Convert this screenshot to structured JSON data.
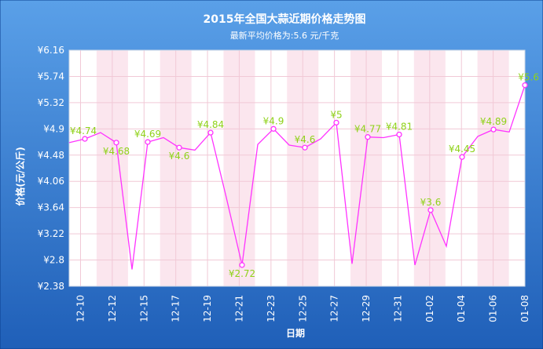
{
  "colors": {
    "background_top": "#5aa0e8",
    "background_bottom": "#1f5fb8",
    "plot_background": "#ffffff",
    "plot_stripe": "#fbe6ee",
    "grid": "#f1c9d6",
    "line": "#ff33ff",
    "marker_fill": "#ffffff",
    "label": "#8fd219",
    "axis_text": "#ffffff"
  },
  "chart_data": {
    "type": "line",
    "title": "2015年全国大蒜近期价格走势图",
    "subtitle": "最新平均价格为:5.6 元/千克",
    "xlabel": "日期",
    "ylabel": "价格(元/公斤)",
    "ylim": [
      2.38,
      6.16
    ],
    "yticks": [
      "¥6.16",
      "¥5.74",
      "¥5.32",
      "¥4.9",
      "¥4.48",
      "¥4.06",
      "¥3.64",
      "¥3.22",
      "¥2.8",
      "¥2.38"
    ],
    "ytick_values": [
      6.16,
      5.74,
      5.32,
      4.9,
      4.48,
      4.06,
      3.64,
      3.22,
      2.8,
      2.38
    ],
    "xticks": [
      "12-10",
      "12-12",
      "12-15",
      "12-17",
      "12-19",
      "12-21",
      "12-23",
      "12-25",
      "12-27",
      "12-29",
      "12-31",
      "01-02",
      "01-04",
      "01-06",
      "01-08"
    ],
    "grid": true,
    "legend": "none",
    "series": [
      {
        "values": [
          4.68,
          4.74,
          4.84,
          4.68,
          2.65,
          4.69,
          4.76,
          4.6,
          4.56,
          4.84,
          3.8,
          2.72,
          4.65,
          4.9,
          4.64,
          4.6,
          4.74,
          5.0,
          2.74,
          4.77,
          4.76,
          4.81,
          2.72,
          3.6,
          3.02,
          4.45,
          4.78,
          4.89,
          4.85,
          5.6
        ],
        "labels": [
          "",
          "¥4.74",
          "",
          "¥4.68",
          "",
          "¥4.69",
          "",
          "¥4.6",
          "",
          "¥4.84",
          "",
          "¥2.72",
          "",
          "¥4.9",
          "",
          "¥4.6",
          "",
          "¥5",
          "",
          "¥4.77",
          "",
          "¥4.81",
          "",
          "¥3.6",
          "",
          "¥4.45",
          "",
          "¥4.89",
          "",
          "¥5.6"
        ]
      }
    ]
  }
}
